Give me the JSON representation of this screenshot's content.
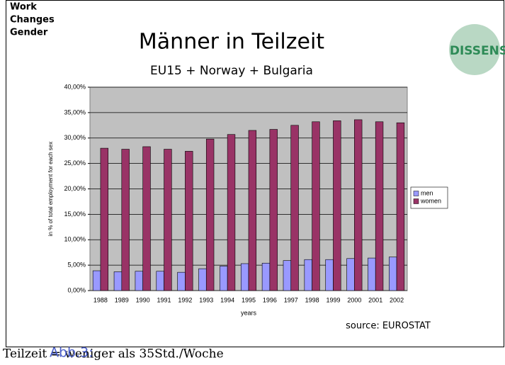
{
  "header": {
    "tag_lines": [
      "Work",
      "Changes",
      "Gender"
    ],
    "title": "Männer in Teilzeit",
    "subtitle": "EU15 + Norway + Bulgaria",
    "logo": "DISSENS"
  },
  "chart_data": {
    "type": "bar",
    "ylabel": "in % of total employment for each sex",
    "xlabel": "years",
    "source": "source: EUROSTAT",
    "categories": [
      "1988",
      "1989",
      "1990",
      "1991",
      "1992",
      "1993",
      "1994",
      "1995",
      "1996",
      "1997",
      "1998",
      "1999",
      "2000",
      "2001",
      "2002"
    ],
    "series": [
      {
        "name": "men",
        "color": "#9999ff",
        "values": [
          3.9,
          3.7,
          3.8,
          3.8,
          3.6,
          4.3,
          4.8,
          5.3,
          5.4,
          5.9,
          6.1,
          6.1,
          6.3,
          6.4,
          6.6
        ]
      },
      {
        "name": "women",
        "color": "#993366",
        "values": [
          28.0,
          27.8,
          28.3,
          27.8,
          27.4,
          29.8,
          30.7,
          31.5,
          31.7,
          32.5,
          33.2,
          33.4,
          33.6,
          33.2,
          33.0
        ]
      }
    ],
    "ylim": [
      0,
      40
    ],
    "yticks": [
      {
        "value": 0,
        "label": "0,00%"
      },
      {
        "value": 5,
        "label": "5,00%"
      },
      {
        "value": 10,
        "label": "10,00%"
      },
      {
        "value": 15,
        "label": "15,00%"
      },
      {
        "value": 20,
        "label": "20,00%"
      },
      {
        "value": 25,
        "label": "25,00%"
      },
      {
        "value": 30,
        "label": "30,00%"
      },
      {
        "value": 35,
        "label": "35,00%"
      },
      {
        "value": 40,
        "label": "40,00%"
      }
    ],
    "grid": true,
    "legend": "right",
    "plot_background": "#c0c0c0"
  },
  "caption": {
    "label": "Abb.3:",
    "text": "Teilzeit = weniger als 35Std./Woche"
  }
}
